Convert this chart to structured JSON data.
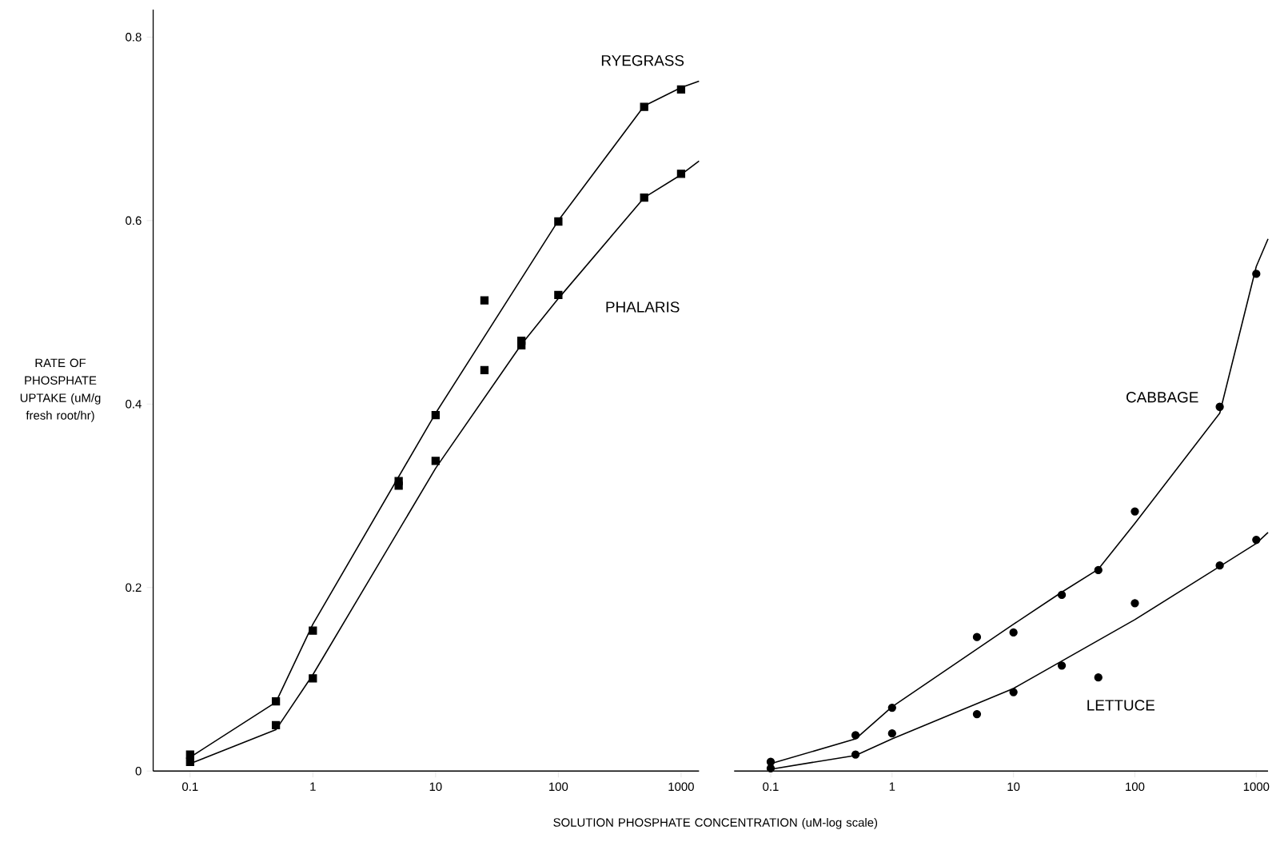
{
  "chart_data": [
    {
      "type": "scatter",
      "log": "x",
      "ylabel": "RATE OF PHOSPHATE UPTAKE (uM/g fresh root/hr)",
      "xlabel": "SOLUTION PHOSPHATE CONCENTRATION (uM-log scale)",
      "xlim": [
        0.05,
        1400
      ],
      "ylim": [
        0,
        0.83
      ],
      "xticks": [
        0.1,
        1,
        10,
        100,
        1000
      ],
      "yticks": [
        0,
        0.2,
        0.4,
        0.6,
        0.8
      ],
      "series": [
        {
          "name": "RYEGRASS",
          "marker": "square",
          "color": "#000000",
          "x": [
            0.1,
            0.5,
            1,
            5,
            10,
            25,
            50,
            100,
            500,
            1000
          ],
          "values": [
            0.018,
            0.076,
            0.153,
            0.316,
            0.388,
            0.513,
            0.469,
            0.599,
            0.724,
            0.743
          ]
        },
        {
          "name": "PHALARIS",
          "marker": "square",
          "color": "#000000",
          "x": [
            0.1,
            0.5,
            1,
            5,
            10,
            25,
            50,
            100,
            500,
            1000
          ],
          "values": [
            0.01,
            0.05,
            0.101,
            0.311,
            0.338,
            0.437,
            0.464,
            0.519,
            0.625,
            0.651
          ]
        },
        {
          "type": "line",
          "color": "#000000",
          "x": [
            0.1,
            0.5,
            1,
            10,
            100,
            500,
            1000,
            1400
          ],
          "values": [
            0.015,
            0.075,
            0.16,
            0.39,
            0.6,
            0.725,
            0.745,
            0.752
          ]
        },
        {
          "type": "line",
          "color": "#000000",
          "x": [
            0.1,
            0.5,
            1,
            10,
            50,
            100,
            500,
            1000,
            1400
          ],
          "values": [
            0.008,
            0.045,
            0.105,
            0.33,
            0.465,
            0.515,
            0.625,
            0.65,
            0.665
          ]
        }
      ]
    },
    {
      "type": "scatter",
      "log": "x",
      "xlim": [
        0.05,
        1250
      ],
      "ylim": [
        0,
        0.8
      ],
      "tick_labels": "x",
      "xticks": [
        0.1,
        1,
        10,
        100,
        1000
      ],
      "yticks": [
        0,
        0.2,
        0.4,
        0.6,
        0.8
      ],
      "series": [
        {
          "name": "CABBAGE",
          "marker": "circle",
          "color": "#000000",
          "x": [
            0.1,
            0.5,
            1,
            5,
            10,
            25,
            50,
            100,
            500,
            1000
          ],
          "values": [
            0.01,
            0.039,
            0.069,
            0.146,
            0.151,
            0.192,
            0.219,
            0.283,
            0.397,
            0.542
          ]
        },
        {
          "name": "LETTUCE",
          "marker": "circle",
          "color": "#000000",
          "x": [
            0.1,
            0.5,
            1,
            5,
            10,
            25,
            50,
            100,
            500,
            1000
          ],
          "values": [
            0.003,
            0.018,
            0.041,
            0.062,
            0.086,
            0.115,
            0.102,
            0.183,
            0.224,
            0.252
          ]
        },
        {
          "type": "line",
          "color": "#000000",
          "x": [
            0.1,
            0.5,
            1,
            10,
            25,
            50,
            100,
            500,
            1000,
            1250
          ],
          "values": [
            0.008,
            0.035,
            0.07,
            0.16,
            0.195,
            0.22,
            0.27,
            0.39,
            0.55,
            0.58
          ]
        },
        {
          "type": "line",
          "color": "#000000",
          "x": [
            0.1,
            0.5,
            1,
            10,
            100,
            1000,
            1250
          ],
          "values": [
            0.002,
            0.017,
            0.035,
            0.09,
            0.165,
            0.248,
            0.26
          ]
        }
      ]
    }
  ]
}
